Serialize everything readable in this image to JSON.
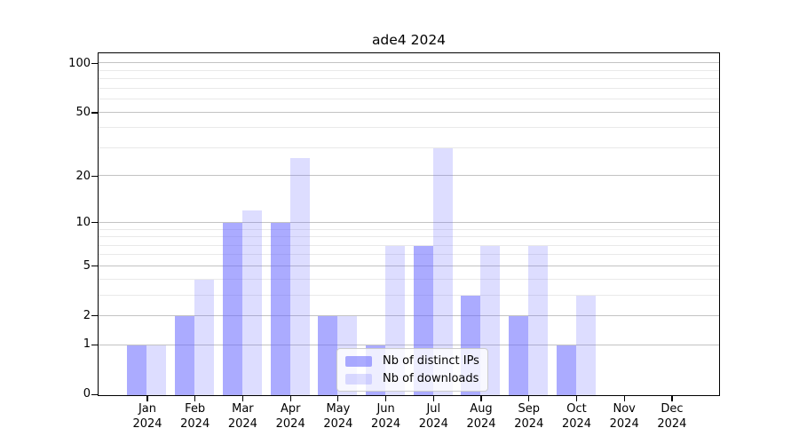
{
  "figure": {
    "title": "ade4 2024"
  },
  "chart_data": {
    "type": "bar",
    "title": "ade4 2024",
    "xlabel": "",
    "ylabel": "",
    "x_tick_year": "2024",
    "categories": [
      "Jan",
      "Feb",
      "Mar",
      "Apr",
      "May",
      "Jun",
      "Jul",
      "Aug",
      "Sep",
      "Oct",
      "Nov",
      "Dec"
    ],
    "series": [
      {
        "name": "Nb of distinct IPs",
        "color": "rgba(102,102,255,0.55)",
        "values": [
          1,
          2,
          10,
          10,
          2,
          1,
          7,
          3,
          2,
          1,
          0,
          0
        ]
      },
      {
        "name": "Nb of downloads",
        "color": "rgba(102,102,255,0.22)",
        "values": [
          1,
          4,
          12,
          26,
          2,
          7,
          30,
          7,
          7,
          3,
          0,
          0
        ]
      }
    ],
    "y_axis": {
      "scale": "log1p",
      "major_ticks": [
        0,
        1,
        2,
        5,
        10,
        20,
        50,
        100
      ],
      "minor_ticks": [
        3,
        4,
        6,
        7,
        8,
        9,
        30,
        40,
        60,
        70,
        80,
        90
      ],
      "max": 115
    },
    "legend": {
      "position": "lower-center",
      "entries": [
        "Nb of distinct IPs",
        "Nb of downloads"
      ]
    },
    "grid": true
  }
}
